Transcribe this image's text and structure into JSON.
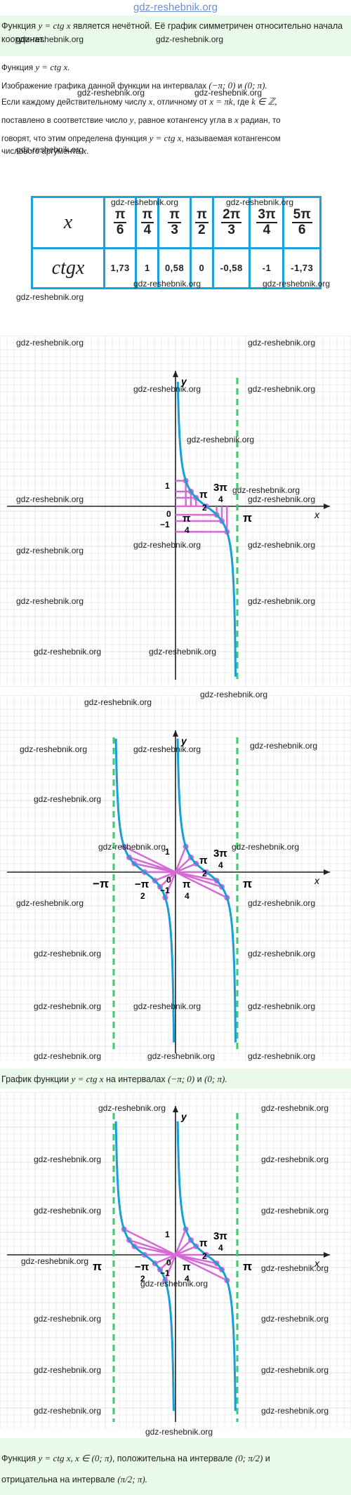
{
  "header": {
    "site": "gdz-reshebnik.org"
  },
  "intro": {
    "p1_a": "Функция ",
    "p1_math": "y = ctg x",
    "p1_b": " является нечётной. Её график симметричен относительно начала координат."
  },
  "body_text": {
    "l1_a": "Функция ",
    "l1_math": "y = ctg x.",
    "l2_a": "Изображение графика данной функции на интервалах ",
    "l2_math1": "(−π; 0)",
    "l2_b": " и ",
    "l2_math2": "(0; π).",
    "l3_a": "Если каждому действительному числу ",
    "l3_math1": "x",
    "l3_b": ", отличному от ",
    "l3_math2": "x = πk",
    "l3_c": ", где ",
    "l3_math3": "k ∈ ℤ,",
    "l4_a": "поставлено в соответствие число ",
    "l4_math1": "y",
    "l4_b": ", равное котангенсу угла в ",
    "l4_math2": "x",
    "l4_c": " радиан, то",
    "l5_a": "говорят, что этим определена функция ",
    "l5_math": "y = ctg x",
    "l5_b": ", называемая котангенсом",
    "l6_a": "числового аргумента ",
    "l6_math": "x",
    "l6_b": "."
  },
  "table": {
    "header_x": "x",
    "header_y": "ctgx",
    "columns": [
      {
        "num": "π",
        "den": "6",
        "value": "1,73"
      },
      {
        "num": "π",
        "den": "4",
        "value": "1"
      },
      {
        "num": "π",
        "den": "3",
        "value": "0,58"
      },
      {
        "num": "π",
        "den": "2",
        "value": "0"
      },
      {
        "num": "2π",
        "den": "3",
        "value": "-0,58"
      },
      {
        "num": "3π",
        "den": "4",
        "value": "-1"
      },
      {
        "num": "5π",
        "den": "6",
        "value": "-1,73"
      }
    ]
  },
  "graph_labels": {
    "y": "y",
    "x": "x",
    "one": "1",
    "zero": "0",
    "neg_one": "−1",
    "pi": "π",
    "neg_pi": "−π",
    "pi_sym": "π",
    "half_den": "2",
    "quarter_den": "4",
    "three_pi": "3π",
    "neg_pi_over": "−π"
  },
  "caption": {
    "a": "График функции ",
    "math1": "y = ctg x",
    "b": " на интервалах ",
    "math2": "(−π; 0)",
    "c": " и ",
    "math3": "(0; π)."
  },
  "conclusion": {
    "a": "Функция ",
    "math1": "y = ctg x, x ∈ (0; π)",
    "b": ", положительна на интервале ",
    "math2": "(0; π/2)",
    "c": " и",
    "d": "отрицательна на интервале ",
    "math3": "(π/2; π)."
  },
  "watermark": "gdz-reshebnik.org",
  "colors": {
    "curve": "#1a9ed6",
    "asymptote": "#3dcc72",
    "construction": "#d66ad6",
    "table_border": "#19a2dc",
    "panel": "#eafaea"
  }
}
